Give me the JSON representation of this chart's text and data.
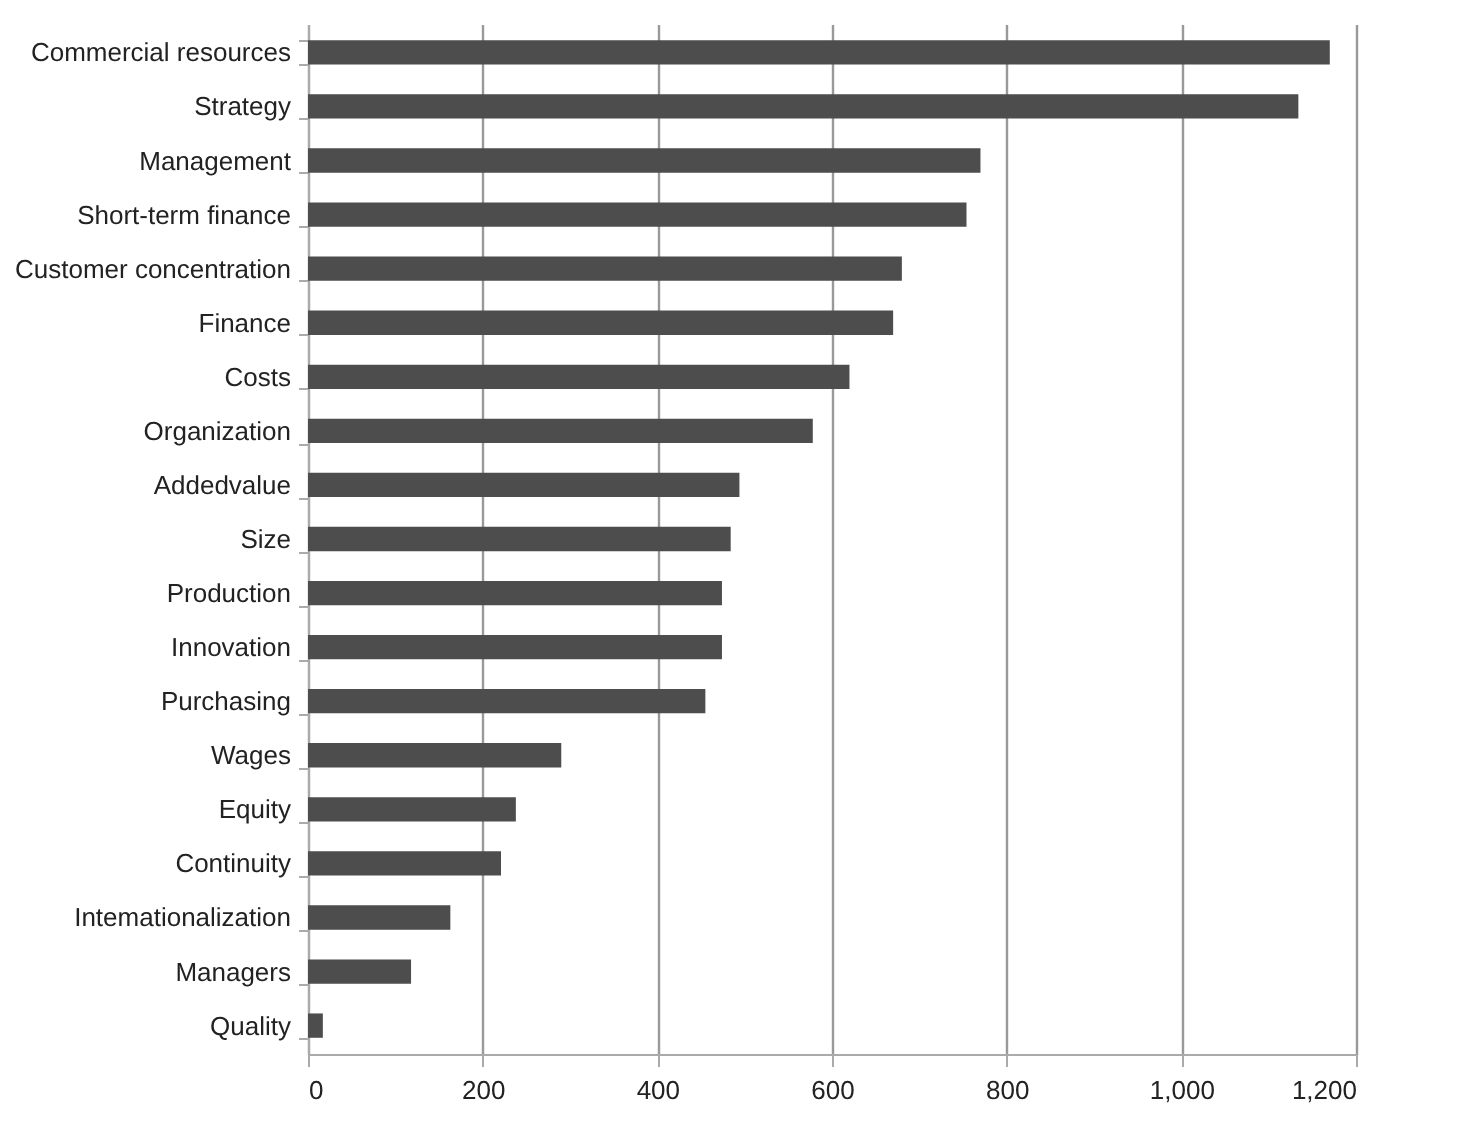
{
  "chart_data": {
    "type": "bar",
    "orientation": "horizontal",
    "categories": [
      "Commercial resources",
      "Strategy",
      "Management",
      "Short-term finance",
      "Customer concentration",
      "Finance",
      "Costs",
      "Organization",
      "Addedvalue",
      "Size",
      "Production",
      "Innovation",
      "Purchasing",
      "Wages",
      "Equity",
      "Continuity",
      "Intemationalization",
      "Managers",
      "Quality"
    ],
    "values": [
      1170,
      1134,
      770,
      754,
      680,
      670,
      620,
      578,
      494,
      484,
      474,
      474,
      455,
      290,
      238,
      221,
      163,
      118,
      17
    ],
    "color": "#4d4d4d",
    "xlim": [
      0,
      1200
    ],
    "xticks": [
      0,
      200,
      400,
      600,
      800,
      {
        "value": 1000,
        "label": "1,000"
      },
      {
        "value": 1200,
        "label": "1,200"
      }
    ],
    "grid": "x"
  }
}
